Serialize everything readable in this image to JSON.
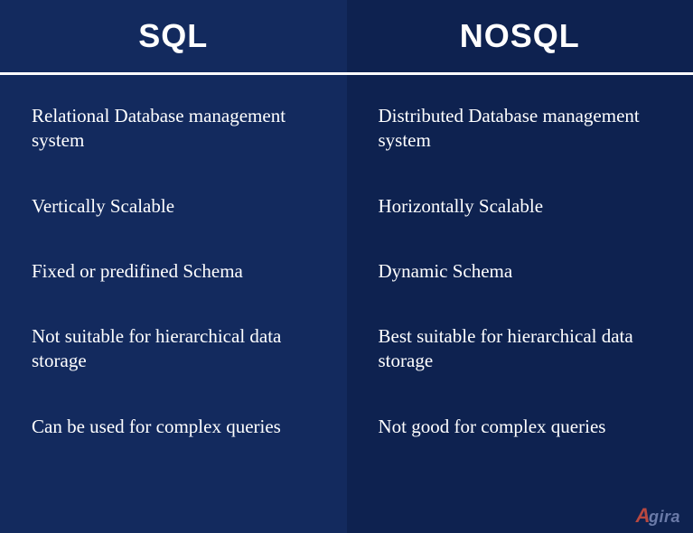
{
  "comparison": {
    "type": "table",
    "left": {
      "header": "SQL",
      "background_color": "#132a5e",
      "items": [
        "Relational Database management system",
        "Vertically Scalable",
        "Fixed or predifined Schema",
        "Not suitable for hierarchical data storage",
        "Can be used for complex queries"
      ]
    },
    "right": {
      "header": "NOSQL",
      "background_color": "#0e2250",
      "items": [
        "Distributed Database management system",
        "Horizontally Scalable",
        "Dynamic Schema",
        "Best suitable for hierarchical data storage",
        "Not good for complex queries"
      ]
    },
    "header_fontsize": 36,
    "item_fontsize": 21,
    "text_color": "#ffffff",
    "divider_color": "#ffffff",
    "divider_width": 3
  },
  "logo": {
    "accent": "A",
    "text": "gira",
    "accent_color": "#b84840",
    "text_color": "#6a7aa8"
  }
}
